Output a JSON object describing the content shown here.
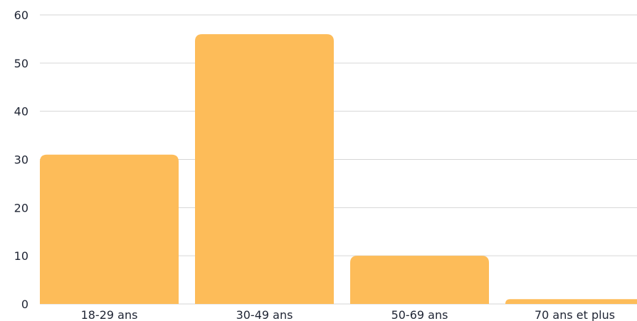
{
  "chart_data": {
    "type": "bar",
    "title": "",
    "xlabel": "",
    "ylabel": "",
    "categories": [
      "18-29 ans",
      "30-49 ans",
      "50-69 ans",
      "70 ans et plus"
    ],
    "values": [
      31,
      56,
      10,
      1
    ],
    "ylim": [
      0,
      60
    ],
    "yticks": [
      "0",
      "10",
      "20",
      "30",
      "40",
      "50",
      "60"
    ],
    "grid": true,
    "legend": "none",
    "colors": {
      "bar": "#fdbc59",
      "grid": "#d6d6d6",
      "text": "#1e2433"
    }
  }
}
